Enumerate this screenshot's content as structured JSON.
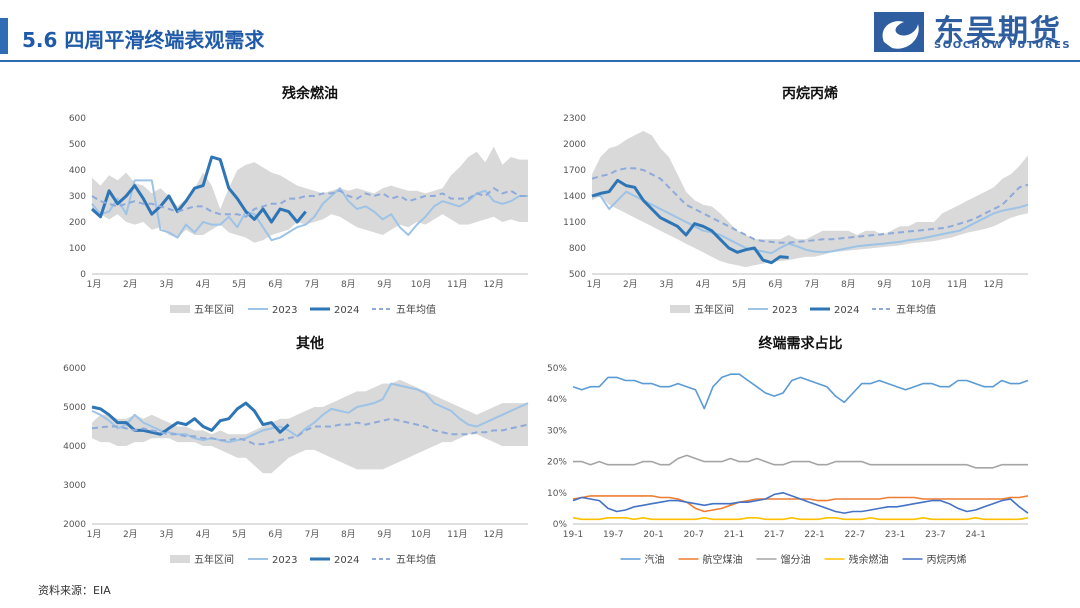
{
  "header": {
    "title": "5.6 四周平滑终端表观需求"
  },
  "logo": {
    "name": "东吴期货",
    "subtitle": "SOOCHOW FUTURES"
  },
  "footer": {
    "source": "资料来源：EIA"
  },
  "colors": {
    "accent": "#2e6db4",
    "band": "#d9d9d9",
    "y2023": "#9dc3e6",
    "y2024": "#2e75b6",
    "avg": "#8eaadb"
  },
  "chart_data": [
    {
      "type": "line",
      "title": "残余燃油",
      "x_ticks": [
        "1月",
        "2月",
        "3月",
        "4月",
        "5月",
        "6月",
        "7月",
        "8月",
        "9月",
        "10月",
        "11月",
        "12月"
      ],
      "ylim": [
        0,
        600
      ],
      "yticks": [
        "0",
        "100",
        "200",
        "300",
        "400",
        "500",
        "600"
      ],
      "legend_position": "bottom",
      "band": {
        "name": "五年区间",
        "high": [
          370,
          340,
          380,
          360,
          390,
          350,
          340,
          310,
          330,
          300,
          260,
          290,
          330,
          390,
          340,
          250,
          330,
          400,
          420,
          430,
          410,
          390,
          380,
          360,
          340,
          330,
          320,
          310,
          320,
          330,
          320,
          330,
          320,
          310,
          330,
          340,
          330,
          320,
          320,
          310,
          320,
          330,
          380,
          410,
          450,
          470,
          430,
          490,
          420,
          450,
          440,
          440
        ],
        "low": [
          240,
          230,
          210,
          230,
          200,
          190,
          200,
          170,
          180,
          150,
          140,
          170,
          150,
          150,
          170,
          190,
          160,
          150,
          140,
          120,
          130,
          150,
          160,
          170,
          200,
          190,
          200,
          210,
          230,
          220,
          200,
          180,
          170,
          160,
          150,
          170,
          190,
          180,
          200,
          190,
          210,
          230,
          210,
          190,
          190,
          200,
          210,
          220,
          200,
          210,
          200,
          200
        ]
      },
      "series": [
        {
          "name": "2023",
          "values": [
            270,
            230,
            240,
            290,
            230,
            360,
            360,
            360,
            170,
            160,
            140,
            190,
            160,
            200,
            190,
            190,
            220,
            180,
            240,
            230,
            180,
            130,
            140,
            160,
            180,
            190,
            220,
            270,
            300,
            330,
            280,
            250,
            260,
            240,
            210,
            230,
            180,
            150,
            190,
            220,
            260,
            280,
            270,
            260,
            280,
            310,
            320,
            280,
            270,
            280,
            300,
            300
          ]
        },
        {
          "name": "2024",
          "values": [
            250,
            220,
            320,
            270,
            300,
            340,
            290,
            230,
            260,
            300,
            240,
            280,
            330,
            340,
            450,
            440,
            330,
            290,
            240,
            210,
            250,
            200,
            250,
            240,
            200,
            240
          ]
        },
        {
          "name": "五年均值",
          "values": [
            300,
            280,
            270,
            260,
            270,
            280,
            270,
            270,
            260,
            250,
            240,
            250,
            260,
            260,
            240,
            230,
            230,
            230,
            220,
            250,
            260,
            270,
            270,
            290,
            290,
            300,
            300,
            310,
            310,
            320,
            300,
            290,
            310,
            300,
            310,
            290,
            300,
            280,
            290,
            300,
            300,
            310,
            290,
            290,
            290,
            310,
            300,
            330,
            310,
            320,
            300,
            300
          ]
        }
      ]
    },
    {
      "type": "line",
      "title": "丙烷丙烯",
      "x_ticks": [
        "1月",
        "2月",
        "3月",
        "4月",
        "5月",
        "6月",
        "7月",
        "8月",
        "9月",
        "10月",
        "11月",
        "12月"
      ],
      "ylim": [
        500,
        2300
      ],
      "yticks": [
        "500",
        "800",
        "1100",
        "1400",
        "1700",
        "2000",
        "2300"
      ],
      "legend_position": "bottom",
      "band": {
        "name": "五年区间",
        "high": [
          1650,
          1850,
          1950,
          1980,
          2050,
          2100,
          2150,
          2100,
          1950,
          1850,
          1650,
          1450,
          1350,
          1300,
          1280,
          1200,
          1100,
          1000,
          950,
          900,
          900,
          900,
          900,
          950,
          900,
          900,
          950,
          1000,
          1000,
          1000,
          1000,
          950,
          1000,
          1000,
          950,
          1000,
          1050,
          1050,
          1100,
          1100,
          1100,
          1200,
          1250,
          1300,
          1350,
          1400,
          1450,
          1500,
          1600,
          1650,
          1750,
          1870
        ]
      },
      "series": [
        {
          "name": "五年区间_low",
          "values": [
            1350,
            1400,
            1300,
            1250,
            1200,
            1150,
            1100,
            1050,
            1000,
            950,
            900,
            850,
            800,
            750,
            700,
            650,
            620,
            600,
            580,
            600,
            620,
            640,
            650,
            660,
            680,
            700,
            700,
            720,
            750,
            760,
            770,
            780,
            790,
            800,
            810,
            820,
            830,
            850,
            860,
            870,
            880,
            900,
            920,
            950,
            980,
            1000,
            1020,
            1050,
            1100,
            1150,
            1180,
            1200
          ]
        },
        {
          "name": "2023",
          "values": [
            1400,
            1400,
            1250,
            1350,
            1450,
            1400,
            1350,
            1300,
            1250,
            1200,
            1150,
            1100,
            1050,
            1000,
            980,
            950,
            900,
            850,
            800,
            780,
            760,
            740,
            800,
            850,
            820,
            780,
            760,
            750,
            760,
            780,
            800,
            820,
            830,
            840,
            850,
            860,
            870,
            890,
            900,
            920,
            940,
            960,
            980,
            1000,
            1050,
            1100,
            1150,
            1200,
            1230,
            1250,
            1270,
            1300
          ]
        },
        {
          "name": "2024",
          "values": [
            1400,
            1430,
            1450,
            1580,
            1520,
            1500,
            1350,
            1250,
            1150,
            1100,
            1050,
            950,
            1080,
            1050,
            1000,
            900,
            800,
            750,
            780,
            800,
            660,
            630,
            700,
            690
          ]
        },
        {
          "name": "五年均值",
          "values": [
            1600,
            1630,
            1650,
            1700,
            1720,
            1720,
            1700,
            1650,
            1600,
            1500,
            1400,
            1300,
            1250,
            1200,
            1150,
            1100,
            1050,
            1000,
            950,
            900,
            880,
            870,
            860,
            860,
            870,
            880,
            890,
            900,
            900,
            910,
            920,
            930,
            940,
            950,
            960,
            970,
            980,
            990,
            1000,
            1010,
            1020,
            1030,
            1050,
            1080,
            1110,
            1150,
            1200,
            1250,
            1300,
            1400,
            1500,
            1530
          ]
        }
      ]
    },
    {
      "type": "line",
      "title": "其他",
      "x_ticks": [
        "1月",
        "2月",
        "3月",
        "4月",
        "5月",
        "6月",
        "7月",
        "8月",
        "9月",
        "10月",
        "11月",
        "12月"
      ],
      "ylim": [
        2000,
        6000
      ],
      "yticks": [
        "2000",
        "3000",
        "4000",
        "5000",
        "6000"
      ],
      "legend_position": "bottom",
      "band": {
        "name": "五年区间",
        "high": [
          4600,
          4800,
          4800,
          4700,
          4700,
          4800,
          4700,
          4800,
          4700,
          4600,
          4500,
          4500,
          4400,
          4400,
          4300,
          4400,
          4300,
          4300,
          4300,
          4400,
          4500,
          4600,
          4700,
          4700,
          4800,
          4900,
          5000,
          5000,
          5100,
          5200,
          5300,
          5400,
          5400,
          5500,
          5600,
          5600,
          5700,
          5600,
          5500,
          5400,
          5300,
          5200,
          5100,
          5000,
          4900,
          4800,
          4900,
          5000,
          5100,
          5100,
          5100,
          5100
        ],
        "low": [
          4200,
          4100,
          4100,
          4000,
          4000,
          4100,
          4100,
          4200,
          4200,
          4200,
          4100,
          4100,
          4100,
          4000,
          4000,
          3900,
          3800,
          3700,
          3700,
          3500,
          3300,
          3300,
          3500,
          3700,
          3800,
          3900,
          3900,
          3800,
          3700,
          3600,
          3500,
          3400,
          3400,
          3400,
          3400,
          3500,
          3600,
          3700,
          3800,
          3900,
          4000,
          4100,
          4100,
          4200,
          4300,
          4300,
          4200,
          4100,
          4000,
          4000,
          4000,
          4000
        ]
      },
      "series": [
        {
          "name": "2023",
          "values": [
            4900,
            4800,
            4650,
            4450,
            4550,
            4800,
            4600,
            4500,
            4400,
            4350,
            4300,
            4300,
            4200,
            4150,
            4200,
            4150,
            4100,
            4150,
            4200,
            4300,
            4400,
            4450,
            4500,
            4400,
            4250,
            4450,
            4600,
            4800,
            4950,
            4900,
            4850,
            5000,
            5050,
            5100,
            5200,
            5600,
            5550,
            5500,
            5450,
            5350,
            5100,
            5000,
            4900,
            4700,
            4550,
            4500,
            4600,
            4700,
            4800,
            4900,
            5000,
            5100
          ]
        },
        {
          "name": "2024",
          "values": [
            5000,
            4950,
            4800,
            4600,
            4600,
            4400,
            4400,
            4350,
            4300,
            4450,
            4600,
            4550,
            4700,
            4500,
            4400,
            4650,
            4700,
            4950,
            5100,
            4900,
            4550,
            4600,
            4350,
            4550
          ]
        },
        {
          "name": "五年均值",
          "values": [
            4450,
            4480,
            4500,
            4500,
            4450,
            4400,
            4450,
            4400,
            4350,
            4300,
            4300,
            4250,
            4250,
            4200,
            4200,
            4150,
            4150,
            4200,
            4150,
            4050,
            4050,
            4100,
            4150,
            4200,
            4250,
            4400,
            4500,
            4500,
            4500,
            4550,
            4550,
            4600,
            4550,
            4600,
            4650,
            4700,
            4650,
            4600,
            4550,
            4500,
            4400,
            4350,
            4300,
            4300,
            4300,
            4350,
            4350,
            4400,
            4400,
            4450,
            4500,
            4550
          ]
        }
      ]
    },
    {
      "type": "line",
      "title": "终端需求占比",
      "x_ticks": [
        "19-1",
        "19-7",
        "20-1",
        "20-7",
        "21-1",
        "21-7",
        "22-1",
        "22-7",
        "23-1",
        "23-7",
        "24-1"
      ],
      "ylim": [
        0,
        50
      ],
      "yticks": [
        "0%",
        "10%",
        "20%",
        "30%",
        "40%",
        "50%"
      ],
      "legend_position": "bottom",
      "series": [
        {
          "name": "汽油",
          "values": [
            44,
            43,
            44,
            44,
            47,
            47,
            46,
            46,
            45,
            45,
            44,
            44,
            45,
            44,
            43,
            37,
            44,
            47,
            48,
            48,
            46,
            44,
            42,
            41,
            42,
            46,
            47,
            46,
            45,
            44,
            41,
            39,
            42,
            45,
            45,
            46,
            45,
            44,
            43,
            44,
            45,
            45,
            44,
            44,
            46,
            46,
            45,
            44,
            44,
            46,
            45,
            45,
            46
          ]
        },
        {
          "name": "航空煤油",
          "values": [
            8,
            8.5,
            9,
            9,
            9,
            9,
            9,
            9,
            9,
            9,
            8.5,
            8.5,
            8,
            7,
            5,
            4,
            4.5,
            5,
            6,
            7,
            7.5,
            8,
            8,
            8,
            8,
            8,
            8,
            8,
            7.5,
            7.5,
            8,
            8,
            8,
            8,
            8,
            8,
            8.5,
            8.5,
            8.5,
            8.5,
            8,
            8,
            8,
            8,
            8,
            8,
            8,
            8,
            8,
            8,
            8.5,
            8.5,
            9
          ]
        },
        {
          "name": "馏分油",
          "values": [
            20,
            20,
            19,
            20,
            19,
            19,
            19,
            19,
            20,
            20,
            19,
            19,
            21,
            22,
            21,
            20,
            20,
            20,
            21,
            20,
            20,
            21,
            20,
            19,
            19,
            20,
            20,
            20,
            19,
            19,
            20,
            20,
            20,
            20,
            19,
            19,
            19,
            19,
            19,
            19,
            19,
            19,
            19,
            19,
            19,
            19,
            18,
            18,
            18,
            19,
            19,
            19,
            19
          ]
        },
        {
          "name": "残余燃油",
          "values": [
            2,
            1.5,
            1.5,
            1.5,
            2,
            2,
            2,
            1.5,
            2,
            1.5,
            1.5,
            1.5,
            1.5,
            1.5,
            1.5,
            2,
            1.5,
            1.5,
            1.5,
            1.5,
            2,
            2,
            1.5,
            1.5,
            1.5,
            2,
            1.5,
            1.5,
            1.5,
            2,
            2,
            1.5,
            1.5,
            1.5,
            2,
            1.5,
            1.5,
            1.5,
            1.5,
            1.5,
            2,
            1.5,
            1.5,
            1.5,
            1.5,
            1.5,
            2,
            1.5,
            1.5,
            1.5,
            1.5,
            1.5,
            2
          ]
        },
        {
          "name": "丙烷丙烯",
          "values": [
            7.5,
            8.5,
            8,
            7.5,
            5,
            4,
            4.5,
            5.5,
            6,
            6.5,
            7,
            7.5,
            7.5,
            7,
            6.5,
            6,
            6.5,
            6.5,
            6.5,
            7,
            7,
            7.5,
            8,
            9.5,
            10,
            9,
            8,
            7,
            6,
            5,
            4,
            3.5,
            4,
            4,
            4.5,
            5,
            5.5,
            5.5,
            6,
            6.5,
            7,
            7.5,
            7.5,
            6.5,
            5,
            4,
            4.5,
            5.5,
            6.5,
            7.5,
            8,
            5.5,
            3.5
          ]
        }
      ]
    }
  ]
}
